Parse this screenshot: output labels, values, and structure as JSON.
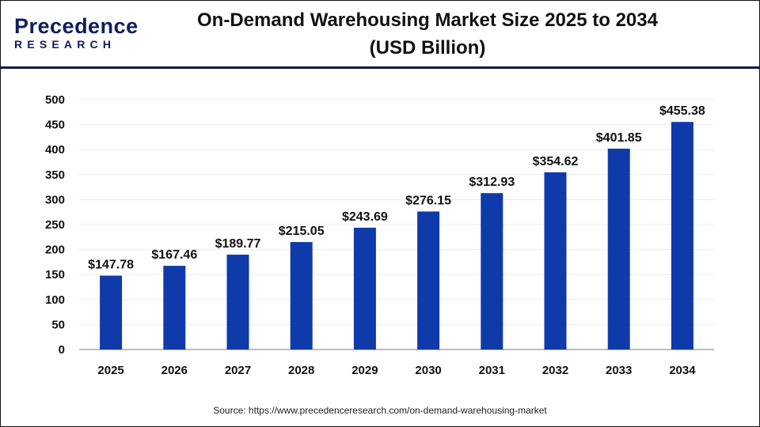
{
  "logo": {
    "text_top": "Precedence",
    "text_bottom": "RESEARCH"
  },
  "source": "Source: https://www.precedenceresearch.com/on-demand-warehousing-market",
  "chart_data": {
    "type": "bar",
    "title_line1": "On-Demand Warehousing Market Size 2025 to 2034",
    "title_line2": "(USD Billion)",
    "xlabel": "",
    "ylabel": "",
    "categories": [
      "2025",
      "2026",
      "2027",
      "2028",
      "2029",
      "2030",
      "2031",
      "2032",
      "2033",
      "2034"
    ],
    "values": [
      147.78,
      167.46,
      189.77,
      215.05,
      243.69,
      276.15,
      312.93,
      354.62,
      401.85,
      455.38
    ],
    "data_labels": [
      "$147.78",
      "$167.46",
      "$189.77",
      "$215.05",
      "$243.69",
      "$276.15",
      "$312.93",
      "$354.62",
      "$401.85",
      "$455.38"
    ],
    "ylim": [
      0,
      500
    ],
    "yticks": [
      0,
      50,
      100,
      150,
      200,
      250,
      300,
      350,
      400,
      450,
      500
    ],
    "grid": true,
    "legend": "none",
    "bar_color": "#0f3aaa"
  }
}
